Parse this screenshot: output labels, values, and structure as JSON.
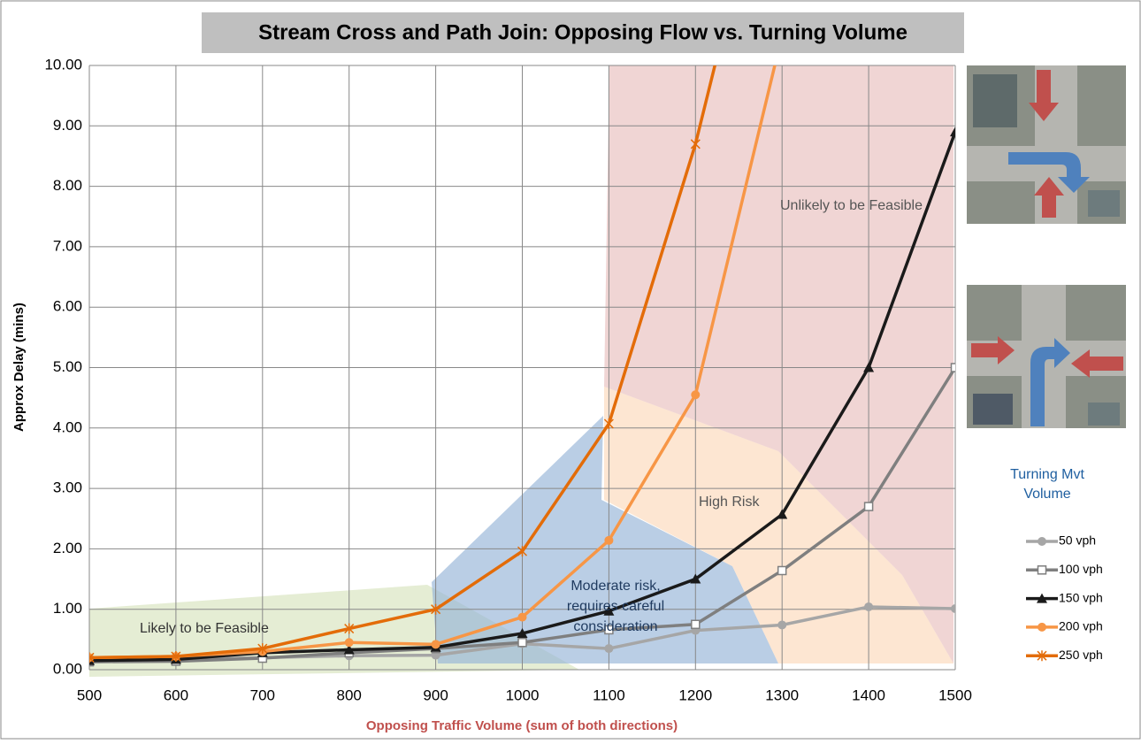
{
  "chart_data": {
    "type": "line",
    "title": "Stream Cross and Path Join:  Opposing Flow vs. Turning Volume",
    "x_label": "Opposing Traffic Volume (sum of both directions)",
    "y_label": "Approx Delay (mins)",
    "x": [
      500,
      600,
      700,
      800,
      900,
      1000,
      1100,
      1200,
      1300,
      1400,
      1500
    ],
    "xlim": [
      500,
      1500
    ],
    "xticks": [
      500,
      600,
      700,
      800,
      900,
      1000,
      1100,
      1200,
      1300,
      1400,
      1500
    ],
    "ylim": [
      0,
      10
    ],
    "yticks": [
      {
        "value": 0,
        "label": "0.00"
      },
      {
        "value": 1,
        "label": "1.00"
      },
      {
        "value": 2,
        "label": "2.00"
      },
      {
        "value": 3,
        "label": "3.00"
      },
      {
        "value": 4,
        "label": "4.00"
      },
      {
        "value": 5,
        "label": "5.00"
      },
      {
        "value": 6,
        "label": "6.00"
      },
      {
        "value": 7,
        "label": "7.00"
      },
      {
        "value": 8,
        "label": "8.00"
      },
      {
        "value": 9,
        "label": "9.00"
      },
      {
        "value": 10,
        "label": "10.00"
      }
    ],
    "grid": true,
    "legend_title": "Turning Mvt Volume",
    "series": [
      {
        "name": "50 vph",
        "color": "#a6a6a6",
        "marker": "circle",
        "values": [
          0.15,
          0.17,
          0.2,
          0.23,
          0.24,
          0.43,
          0.35,
          0.65,
          0.74,
          1.04,
          1.01
        ]
      },
      {
        "name": "100 vph",
        "color": "#7f7f7f",
        "marker": "square-open",
        "values": [
          0.13,
          0.14,
          0.19,
          0.28,
          0.35,
          0.45,
          0.66,
          0.75,
          1.64,
          2.7,
          5.0
        ]
      },
      {
        "name": "150 vph",
        "color": "#1a1a1a",
        "marker": "triangle",
        "values": [
          0.15,
          0.17,
          0.28,
          0.33,
          0.37,
          0.6,
          0.97,
          1.5,
          2.57,
          5.0,
          8.9
        ]
      },
      {
        "name": "200 vph",
        "color": "#f79646",
        "marker": "circle",
        "values": [
          0.2,
          0.22,
          0.3,
          0.45,
          0.42,
          0.87,
          2.14,
          4.55,
          10.5,
          null,
          null
        ]
      },
      {
        "name": "250 vph",
        "color": "#e36c09",
        "marker": "star",
        "values": [
          0.2,
          0.22,
          0.35,
          0.68,
          1.0,
          1.96,
          4.07,
          8.7,
          14.5,
          null,
          null
        ]
      }
    ],
    "annotations": [
      "Likely to be Feasible",
      "Moderate risk,",
      "requires careful",
      "consideration",
      "High Risk",
      "Unlikely to be Feasible"
    ]
  }
}
